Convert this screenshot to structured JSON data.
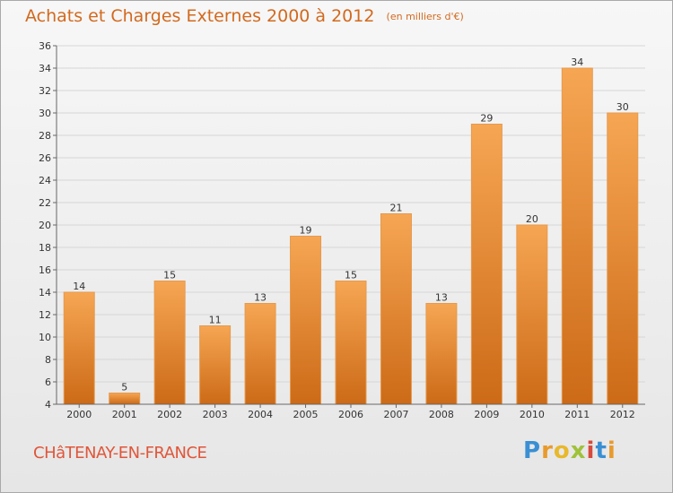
{
  "title": "Achats et Charges Externes 2000 à 2012",
  "unit": "(en milliers d'€)",
  "city": "CHâTENAY-EN-FRANCE",
  "logo": {
    "letters": [
      "P",
      "r",
      "o",
      "x",
      "i",
      "t",
      "i"
    ],
    "colors": [
      "#3a8fd4",
      "#e89b2d",
      "#e8b82d",
      "#9fc23a",
      "#d74a3c",
      "#3a8fd4",
      "#e89b2d"
    ]
  },
  "colors": {
    "bar_top": "#f6a653",
    "bar_bottom": "#cc6a17",
    "title": "#d2691e",
    "city": "#e0563a"
  },
  "chart_data": {
    "type": "bar",
    "categories": [
      "2000",
      "2001",
      "2002",
      "2003",
      "2004",
      "2005",
      "2006",
      "2007",
      "2008",
      "2009",
      "2010",
      "2011",
      "2012"
    ],
    "values": [
      14,
      5,
      15,
      11,
      13,
      19,
      15,
      21,
      13,
      29,
      20,
      34,
      30
    ],
    "ylim": [
      4,
      36
    ],
    "yticks": [
      4,
      6,
      8,
      10,
      12,
      14,
      16,
      18,
      20,
      22,
      24,
      26,
      28,
      30,
      32,
      34,
      36
    ],
    "grid": true,
    "data_labels": true
  }
}
